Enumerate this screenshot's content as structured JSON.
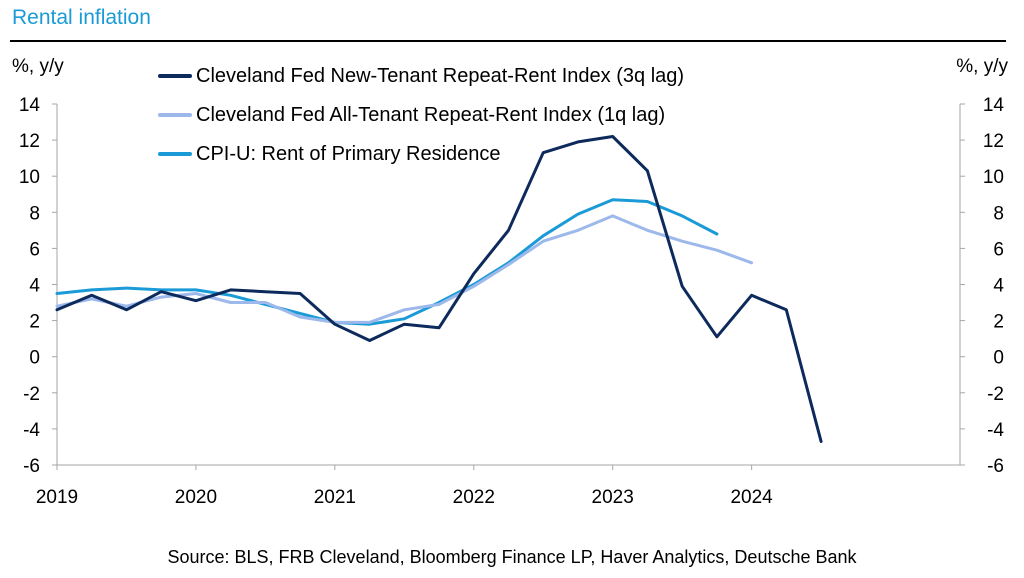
{
  "header": {
    "title": "Rental inflation",
    "unit_left": "%, y/y",
    "unit_right": "%, y/y"
  },
  "footer": {
    "source": "Source: BLS, FRB Cleveland, Bloomberg Finance LP, Haver Analytics, Deutsche Bank"
  },
  "chart_data": {
    "type": "line",
    "title": "Rental inflation",
    "ylabel": "%, y/y",
    "ylim": [
      -6,
      14
    ],
    "yticks": [
      14,
      12,
      10,
      8,
      6,
      4,
      2,
      0,
      -2,
      -4,
      -6
    ],
    "ytick_labels": [
      "14",
      "12",
      "10",
      "8",
      "6",
      "4",
      "2",
      "0",
      "-2",
      "-4",
      "-6"
    ],
    "xlim": [
      2019,
      2025.5
    ],
    "xticks": [
      2019,
      2020,
      2021,
      2022,
      2023,
      2024
    ],
    "xtick_labels": [
      "2019",
      "2020",
      "2021",
      "2022",
      "2023",
      "2024"
    ],
    "legend": "top-left",
    "grid": false,
    "series": [
      {
        "name": "Cleveland Fed New-Tenant Repeat-Rent Index (3q lag)",
        "color": "#0d2a5c",
        "x": [
          2019.0,
          2019.25,
          2019.5,
          2019.75,
          2020.0,
          2020.25,
          2020.5,
          2020.75,
          2021.0,
          2021.25,
          2021.5,
          2021.75,
          2022.0,
          2022.25,
          2022.5,
          2022.75,
          2023.0,
          2023.25,
          2023.5,
          2023.75,
          2024.0,
          2024.25,
          2024.5
        ],
        "values": [
          2.6,
          3.4,
          2.6,
          3.6,
          3.1,
          3.7,
          3.6,
          3.5,
          1.8,
          0.9,
          1.8,
          1.6,
          4.6,
          7.0,
          11.3,
          11.9,
          12.2,
          10.3,
          3.9,
          1.1,
          3.4,
          2.6,
          -4.7
        ]
      },
      {
        "name": "Cleveland Fed All-Tenant Repeat-Rent Index (1q lag)",
        "color": "#9db8ea",
        "x": [
          2019.0,
          2019.25,
          2019.5,
          2019.75,
          2020.0,
          2020.25,
          2020.5,
          2020.75,
          2021.0,
          2021.25,
          2021.5,
          2021.75,
          2022.0,
          2022.25,
          2022.5,
          2022.75,
          2023.0,
          2023.25,
          2023.5,
          2023.75,
          2024.0
        ],
        "values": [
          2.8,
          3.2,
          2.8,
          3.3,
          3.5,
          3.0,
          3.0,
          2.2,
          1.9,
          1.9,
          2.6,
          2.9,
          3.9,
          5.1,
          6.4,
          7.0,
          7.8,
          7.0,
          6.4,
          5.9,
          5.2
        ]
      },
      {
        "name": "CPI-U: Rent of Primary Residence",
        "color": "#1a9bd7",
        "x": [
          2019.0,
          2019.25,
          2019.5,
          2019.75,
          2020.0,
          2020.25,
          2020.5,
          2020.75,
          2021.0,
          2021.25,
          2021.5,
          2021.75,
          2022.0,
          2022.25,
          2022.5,
          2022.75,
          2023.0,
          2023.25,
          2023.5,
          2023.75
        ],
        "values": [
          3.5,
          3.7,
          3.8,
          3.7,
          3.7,
          3.4,
          2.9,
          2.4,
          1.9,
          1.8,
          2.1,
          3.0,
          4.0,
          5.2,
          6.7,
          7.9,
          8.7,
          8.6,
          7.8,
          6.8
        ]
      }
    ]
  }
}
